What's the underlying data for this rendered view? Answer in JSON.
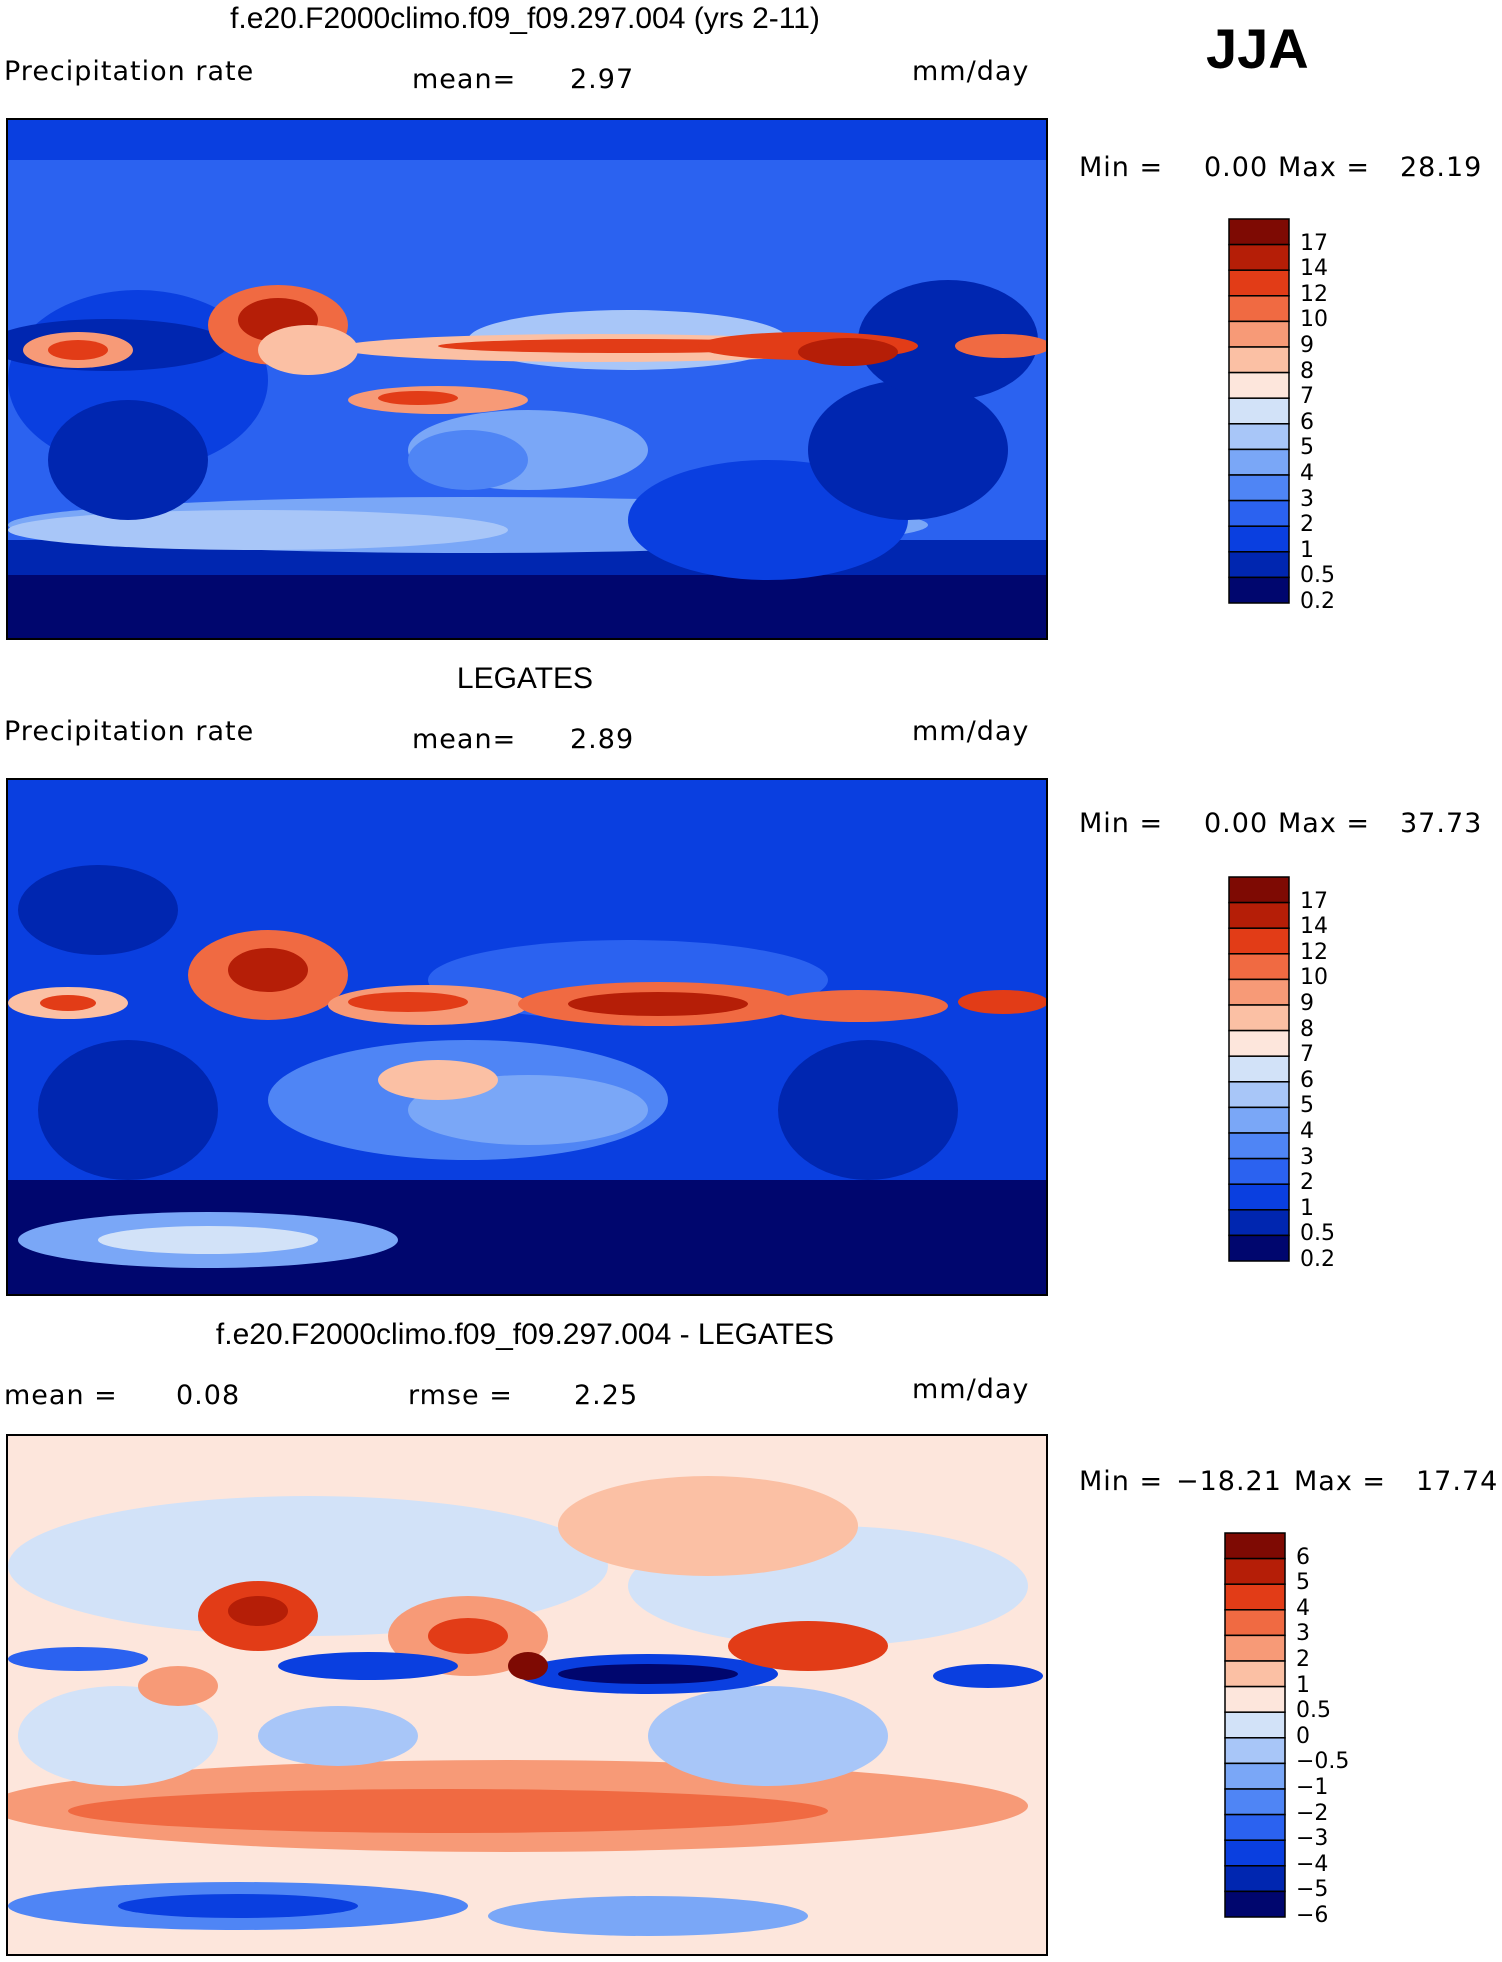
{
  "season": "JJA",
  "colors": {
    "precip": [
      "#00066e",
      "#0026b0",
      "#0a3fe0",
      "#2b62f0",
      "#4f85f5",
      "#7aa7f7",
      "#a8c6f8",
      "#d2e2f8",
      "#fde6dc",
      "#fbc0a4",
      "#f79a77",
      "#f06a42",
      "#e23c17",
      "#b51e07",
      "#7e0a03"
    ],
    "diff": [
      "#00066e",
      "#0026b0",
      "#0a3fe0",
      "#2b62f0",
      "#4f85f5",
      "#7aa7f7",
      "#a8c6f8",
      "#d2e2f8",
      "#fde6dc",
      "#fbc0a4",
      "#f79a77",
      "#f06a42",
      "#e23c17",
      "#b51e07",
      "#7e0a03"
    ]
  },
  "panels": [
    {
      "title": "f.e20.F2000climo.f09_f09.297.004 (yrs 2-11)",
      "left_label": "Precipitation rate",
      "mid_label": "mean=",
      "mid_value": "2.97",
      "units": "mm/day",
      "min_label": "Min =",
      "min_value": "0.00",
      "max_label": "Max =",
      "max_value": "28.19",
      "levels": [
        "17",
        "14",
        "12",
        "10",
        "9",
        "8",
        "7",
        "6",
        "5",
        "4",
        "3",
        "2",
        "1",
        "0.5",
        "0.2"
      ]
    },
    {
      "title": "LEGATES",
      "left_label": "Precipitation rate",
      "mid_label": "mean=",
      "mid_value": "2.89",
      "units": "mm/day",
      "min_label": "Min =",
      "min_value": "0.00",
      "max_label": "Max =",
      "max_value": "37.73",
      "levels": [
        "17",
        "14",
        "12",
        "10",
        "9",
        "8",
        "7",
        "6",
        "5",
        "4",
        "3",
        "2",
        "1",
        "0.5",
        "0.2"
      ]
    },
    {
      "title": "f.e20.F2000climo.f09_f09.297.004 - LEGATES",
      "left_label": "mean =",
      "left_value": "0.08",
      "mid_label": "rmse =",
      "mid_value": "2.25",
      "units": "mm/day",
      "min_label": "Min =",
      "min_value": "−18.21",
      "max_label": "Max =",
      "max_value": "17.74",
      "levels": [
        "6",
        "5",
        "4",
        "3",
        "2",
        "1",
        "0.5",
        "0",
        "−0.5",
        "−1",
        "−2",
        "−3",
        "−4",
        "−5",
        "−6"
      ]
    }
  ]
}
